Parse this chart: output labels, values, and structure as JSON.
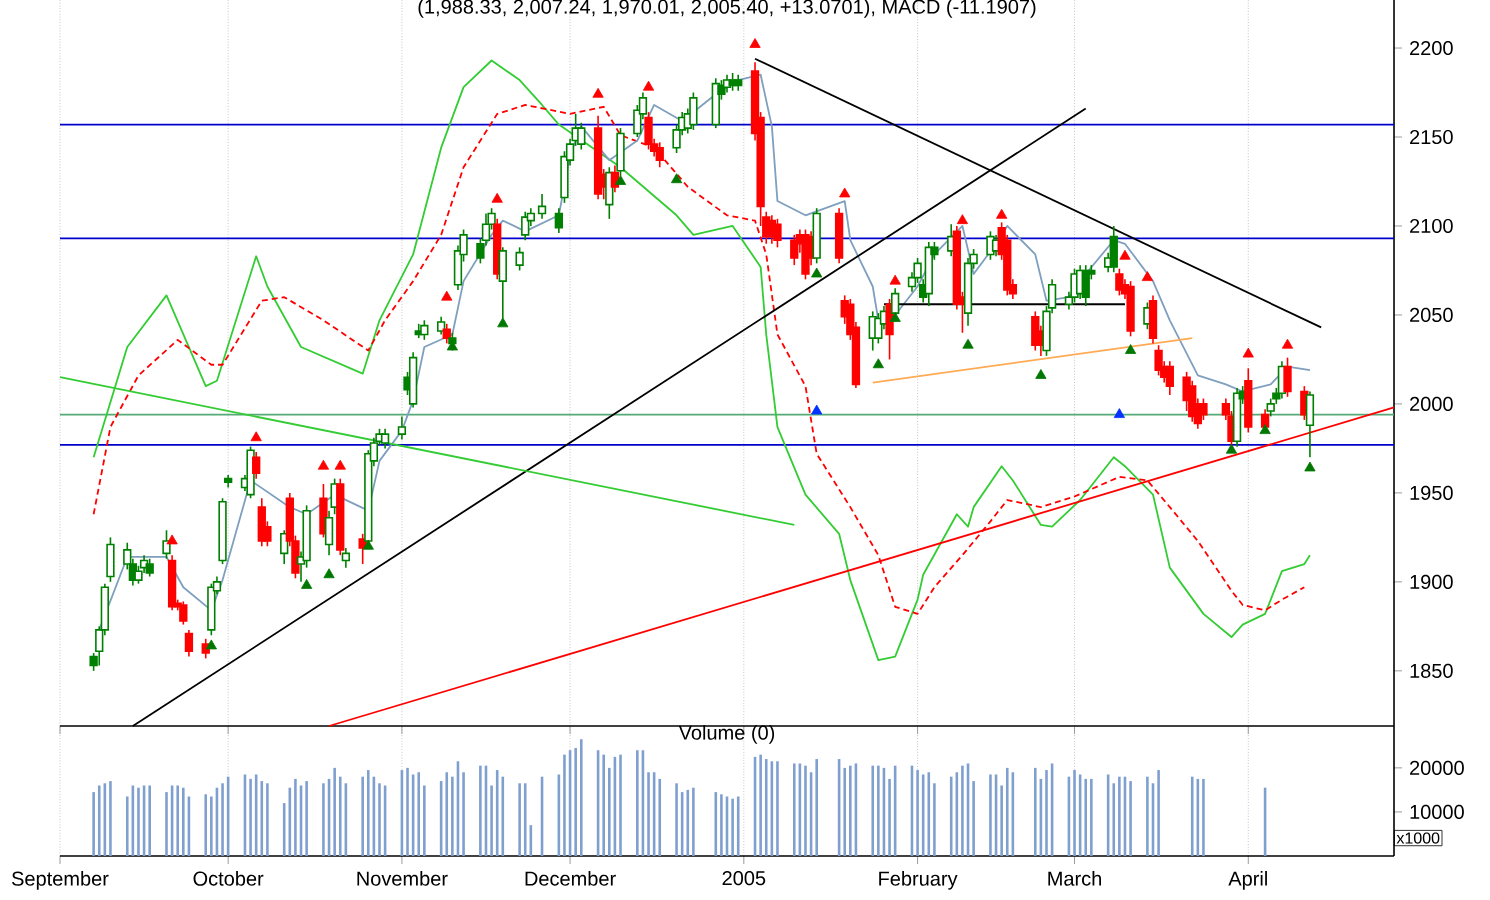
{
  "chart_data": [
    {
      "type": "candlestick",
      "title": "(1,988.33, 2,007.24, 1,970.01, 2,005.40, +13.0701), MACD (-11.1907)",
      "x": [
        "2004-09-07",
        "2004-09-08",
        "2004-09-09",
        "2004-09-10",
        "2004-09-13",
        "2004-09-14",
        "2004-09-15",
        "2004-09-16",
        "2004-09-17",
        "2004-09-20",
        "2004-09-21",
        "2004-09-22",
        "2004-09-23",
        "2004-09-24",
        "2004-09-27",
        "2004-09-28",
        "2004-09-29",
        "2004-09-30",
        "2004-10-01",
        "2004-10-04",
        "2004-10-05",
        "2004-10-06",
        "2004-10-07",
        "2004-10-08",
        "2004-10-11",
        "2004-10-12",
        "2004-10-13",
        "2004-10-14",
        "2004-10-15",
        "2004-10-18",
        "2004-10-19",
        "2004-10-20",
        "2004-10-21",
        "2004-10-22",
        "2004-10-25",
        "2004-10-26",
        "2004-10-27",
        "2004-10-28",
        "2004-10-29",
        "2004-11-01",
        "2004-11-02",
        "2004-11-03",
        "2004-11-04",
        "2004-11-05",
        "2004-11-08",
        "2004-11-09",
        "2004-11-10",
        "2004-11-11",
        "2004-11-12",
        "2004-11-15",
        "2004-11-16",
        "2004-11-17",
        "2004-11-18",
        "2004-11-19",
        "2004-11-22",
        "2004-11-23",
        "2004-11-24",
        "2004-11-26",
        "2004-11-29",
        "2004-11-30",
        "2004-12-01",
        "2004-12-02",
        "2004-12-03",
        "2004-12-06",
        "2004-12-07",
        "2004-12-08",
        "2004-12-09",
        "2004-12-10",
        "2004-12-13",
        "2004-12-14",
        "2004-12-15",
        "2004-12-16",
        "2004-12-17",
        "2004-12-20",
        "2004-12-21",
        "2004-12-22",
        "2004-12-23",
        "2004-12-27",
        "2004-12-28",
        "2004-12-29",
        "2004-12-30",
        "2004-12-31",
        "2005-01-03",
        "2005-01-04",
        "2005-01-05",
        "2005-01-06",
        "2005-01-07",
        "2005-01-10",
        "2005-01-11",
        "2005-01-12",
        "2005-01-13",
        "2005-01-14",
        "2005-01-18",
        "2005-01-19",
        "2005-01-20",
        "2005-01-21",
        "2005-01-24",
        "2005-01-25",
        "2005-01-26",
        "2005-01-27",
        "2005-01-28",
        "2005-01-31",
        "2005-02-01",
        "2005-02-02",
        "2005-02-03",
        "2005-02-04",
        "2005-02-07",
        "2005-02-08",
        "2005-02-09",
        "2005-02-10",
        "2005-02-11",
        "2005-02-14",
        "2005-02-15",
        "2005-02-16",
        "2005-02-17",
        "2005-02-18",
        "2005-02-22",
        "2005-02-23",
        "2005-02-24",
        "2005-02-25",
        "2005-02-28",
        "2005-03-01",
        "2005-03-02",
        "2005-03-03",
        "2005-03-04",
        "2005-03-07",
        "2005-03-08",
        "2005-03-09",
        "2005-03-10",
        "2005-03-11",
        "2005-03-14",
        "2005-03-15",
        "2005-03-16",
        "2005-03-17",
        "2005-03-18",
        "2005-03-21",
        "2005-03-22",
        "2005-03-23",
        "2005-03-24",
        "2005-03-28",
        "2005-03-29",
        "2005-03-30",
        "2005-03-31",
        "2005-04-01",
        "2005-04-04",
        "2005-04-05",
        "2005-04-06",
        "2005-04-07",
        "2005-04-08",
        "2005-04-11",
        "2005-04-12"
      ],
      "ohlc": [
        [
          1858,
          1860,
          1850,
          1853
        ],
        [
          1861,
          1875,
          1853,
          1873
        ],
        [
          1873,
          1899,
          1870,
          1897
        ],
        [
          1903,
          1925,
          1900,
          1921
        ],
        [
          1910,
          1922,
          1907,
          1918
        ],
        [
          1910,
          1913,
          1898,
          1901
        ],
        [
          1901,
          1909,
          1899,
          1906
        ],
        [
          1908,
          1915,
          1905,
          1912
        ],
        [
          1910,
          1913,
          1903,
          1905
        ],
        [
          1916,
          1929,
          1913,
          1923
        ],
        [
          1912,
          1915,
          1884,
          1886
        ],
        [
          1888,
          1890,
          1884,
          1886
        ],
        [
          1887,
          1889,
          1876,
          1878
        ],
        [
          1871,
          1873,
          1858,
          1861
        ],
        [
          1865,
          1868,
          1857,
          1860
        ],
        [
          1873,
          1899,
          1870,
          1897
        ],
        [
          1895,
          1903,
          1893,
          1900
        ],
        [
          1912,
          1947,
          1910,
          1945
        ],
        [
          1958,
          1960,
          1953,
          1956
        ],
        [
          1953,
          1960,
          1951,
          1958
        ],
        [
          1949,
          1976,
          1947,
          1974
        ],
        [
          1970,
          1973,
          1958,
          1961
        ],
        [
          1942,
          1947,
          1920,
          1923
        ],
        [
          1931,
          1934,
          1920,
          1923
        ],
        [
          1916,
          1929,
          1910,
          1927
        ],
        [
          1947,
          1950,
          1920,
          1923
        ],
        [
          1923,
          1926,
          1902,
          1905
        ],
        [
          1910,
          1917,
          1900,
          1914
        ],
        [
          1912,
          1943,
          1908,
          1940
        ],
        [
          1947,
          1955,
          1925,
          1927
        ],
        [
          1921,
          1940,
          1915,
          1936
        ],
        [
          1942,
          1958,
          1938,
          1955
        ],
        [
          1955,
          1958,
          1915,
          1918
        ],
        [
          1912,
          1919,
          1908,
          1916
        ],
        [
          1924,
          1927,
          1910,
          1919
        ],
        [
          1923,
          1974,
          1920,
          1972
        ],
        [
          1968,
          1981,
          1965,
          1978
        ],
        [
          1979,
          1986,
          1977,
          1983
        ],
        [
          1978,
          1986,
          1975,
          1983
        ],
        [
          1983,
          1993,
          1980,
          1987
        ],
        [
          2015,
          2018,
          2005,
          2008
        ],
        [
          2000,
          2029,
          1998,
          2026
        ],
        [
          2041,
          2045,
          2037,
          2039
        ],
        [
          2039,
          2047,
          2036,
          2044
        ],
        [
          2041,
          2049,
          2039,
          2046
        ],
        [
          2042,
          2045,
          2034,
          2037
        ],
        [
          2037,
          2040,
          2030,
          2034
        ],
        [
          2067,
          2089,
          2064,
          2086
        ],
        [
          2084,
          2098,
          2080,
          2095
        ],
        [
          2090,
          2093,
          2079,
          2082
        ],
        [
          2092,
          2107,
          2089,
          2101
        ],
        [
          2101,
          2110,
          2098,
          2107
        ],
        [
          2101,
          2104,
          2070,
          2073
        ],
        [
          2069,
          2088,
          2048,
          2086
        ],
        [
          2078,
          2088,
          2075,
          2085
        ],
        [
          2095,
          2108,
          2092,
          2105
        ],
        [
          2103,
          2110,
          2100,
          2107
        ],
        [
          2107,
          2118,
          2104,
          2111
        ],
        [
          2107,
          2110,
          2096,
          2099
        ],
        [
          2116,
          2142,
          2113,
          2139
        ],
        [
          2137,
          2149,
          2134,
          2146
        ],
        [
          2148,
          2163,
          2145,
          2155
        ],
        [
          2146,
          2158,
          2143,
          2155
        ],
        [
          2155,
          2162,
          2115,
          2118
        ],
        [
          2129,
          2132,
          2115,
          2122
        ],
        [
          2112,
          2133,
          2104,
          2130
        ],
        [
          2130,
          2134,
          2119,
          2122
        ],
        [
          2131,
          2155,
          2128,
          2152
        ],
        [
          2152,
          2168,
          2150,
          2165
        ],
        [
          2163,
          2175,
          2160,
          2172
        ],
        [
          2161,
          2164,
          2143,
          2146
        ],
        [
          2146,
          2149,
          2139,
          2142
        ],
        [
          2144,
          2147,
          2133,
          2137
        ],
        [
          2144,
          2157,
          2141,
          2154
        ],
        [
          2154,
          2164,
          2151,
          2161
        ],
        [
          2155,
          2166,
          2152,
          2163
        ],
        [
          2157,
          2175,
          2154,
          2172
        ],
        [
          2157,
          2183,
          2155,
          2180
        ],
        [
          2179,
          2182,
          2171,
          2174
        ],
        [
          2178,
          2185,
          2175,
          2182
        ],
        [
          2182,
          2186,
          2176,
          2179
        ],
        [
          2182,
          2185,
          2176,
          2179
        ],
        [
          2187,
          2192,
          2148,
          2152
        ],
        [
          2161,
          2164,
          2100,
          2111
        ],
        [
          2105,
          2108,
          2090,
          2094
        ],
        [
          2103,
          2106,
          2090,
          2094
        ],
        [
          2101,
          2104,
          2088,
          2092
        ],
        [
          2092,
          2095,
          2078,
          2082
        ],
        [
          2095,
          2098,
          2085,
          2090
        ],
        [
          2095,
          2098,
          2070,
          2073
        ],
        [
          2094,
          2097,
          2078,
          2082
        ],
        [
          2082,
          2110,
          2079,
          2107
        ],
        [
          2107,
          2110,
          2079,
          2082
        ],
        [
          2058,
          2061,
          2045,
          2049
        ],
        [
          2056,
          2059,
          2036,
          2039
        ],
        [
          2043,
          2046,
          2009,
          2011
        ],
        [
          2037,
          2052,
          2030,
          2049
        ],
        [
          2037,
          2051,
          2034,
          2048
        ],
        [
          2045,
          2055,
          2042,
          2052
        ],
        [
          2056,
          2059,
          2025,
          2039
        ],
        [
          2051,
          2065,
          2048,
          2062
        ],
        [
          2066,
          2074,
          2063,
          2071
        ],
        [
          2071,
          2082,
          2068,
          2079
        ],
        [
          2067,
          2070,
          2057,
          2060
        ],
        [
          2062,
          2091,
          2055,
          2088
        ],
        [
          2088,
          2091,
          2081,
          2084
        ],
        [
          2086,
          2101,
          2083,
          2094
        ],
        [
          2097,
          2100,
          2053,
          2056
        ],
        [
          2060,
          2063,
          2040,
          2056
        ],
        [
          2051,
          2082,
          2044,
          2079
        ],
        [
          2079,
          2087,
          2076,
          2084
        ],
        [
          2084,
          2097,
          2081,
          2094
        ],
        [
          2086,
          2095,
          2083,
          2092
        ],
        [
          2099,
          2102,
          2081,
          2084
        ],
        [
          2092,
          2095,
          2061,
          2064
        ],
        [
          2067,
          2070,
          2059,
          2062
        ],
        [
          2049,
          2052,
          2030,
          2033
        ],
        [
          2041,
          2044,
          2027,
          2033
        ],
        [
          2030,
          2055,
          2027,
          2052
        ],
        [
          2054,
          2070,
          2051,
          2067
        ],
        [
          2056,
          2063,
          2053,
          2060
        ],
        [
          2060,
          2076,
          2057,
          2073
        ],
        [
          2062,
          2078,
          2059,
          2075
        ],
        [
          2075,
          2078,
          2055,
          2060
        ],
        [
          2075,
          2078,
          2070,
          2073
        ],
        [
          2077,
          2085,
          2074,
          2082
        ],
        [
          2094,
          2100,
          2074,
          2077
        ],
        [
          2073,
          2076,
          2061,
          2064
        ],
        [
          2067,
          2070,
          2059,
          2062
        ],
        [
          2066,
          2069,
          2038,
          2041
        ],
        [
          2045,
          2057,
          2042,
          2054
        ],
        [
          2058,
          2061,
          2034,
          2037
        ],
        [
          2030,
          2033,
          2016,
          2019
        ],
        [
          2021,
          2024,
          2012,
          2015
        ],
        [
          2021,
          2024,
          2005,
          2010
        ],
        [
          2015,
          2018,
          1996,
          2002
        ],
        [
          2010,
          2013,
          1990,
          1993
        ],
        [
          2000,
          2003,
          1986,
          1989
        ],
        [
          2000,
          2003,
          1991,
          1994
        ],
        [
          2000,
          2003,
          1991,
          1994
        ],
        [
          1993,
          1996,
          1976,
          1979
        ],
        [
          1979,
          2009,
          1976,
          2006
        ],
        [
          2007,
          2010,
          2000,
          2003
        ],
        [
          2013,
          2020,
          1984,
          1987
        ],
        [
          1994,
          1997,
          1984,
          1987
        ],
        [
          1996,
          2003,
          1993,
          2000
        ],
        [
          2006,
          2009,
          2000,
          2003
        ],
        [
          2006,
          2024,
          2003,
          2021
        ],
        [
          2021,
          2026,
          2004,
          2007
        ],
        [
          2007,
          2010,
          1991,
          1994
        ],
        [
          1988,
          2007,
          1970,
          2005
        ]
      ],
      "colors": [
        "#008000",
        "#008000",
        "#008000",
        "#008000",
        "#008000",
        "#008000",
        "#008000",
        "#008000",
        "#008000",
        "#008000",
        "#ff0000",
        "#ff0000",
        "#ff0000",
        "#ff0000",
        "#ff0000",
        "#008000",
        "#008000",
        "#008000",
        "#008000",
        "#008000",
        "#008000",
        "#ff0000",
        "#ff0000",
        "#ff0000",
        "#008000",
        "#ff0000",
        "#ff0000",
        "#008000",
        "#008000",
        "#ff0000",
        "#008000",
        "#008000",
        "#ff0000",
        "#008000",
        "#ff0000",
        "#008000",
        "#008000",
        "#008000",
        "#008000",
        "#008000",
        "#008000",
        "#008000",
        "#008000",
        "#008000",
        "#008000",
        "#ff0000",
        "#008000",
        "#008000",
        "#008000",
        "#008000",
        "#008000",
        "#008000",
        "#ff0000",
        "#008000",
        "#008000",
        "#008000",
        "#008000",
        "#008000",
        "#008000",
        "#008000",
        "#008000",
        "#008000",
        "#008000",
        "#ff0000",
        "#ff0000",
        "#008000",
        "#ff0000",
        "#008000",
        "#008000",
        "#008000",
        "#ff0000",
        "#ff0000",
        "#ff0000",
        "#008000",
        "#008000",
        "#008000",
        "#008000",
        "#008000",
        "#008000",
        "#008000",
        "#008000",
        "#008000",
        "#ff0000",
        "#ff0000",
        "#ff0000",
        "#ff0000",
        "#ff0000",
        "#ff0000",
        "#ff0000",
        "#ff0000",
        "#ff0000",
        "#008000",
        "#ff0000",
        "#ff0000",
        "#ff0000",
        "#ff0000",
        "#008000",
        "#008000",
        "#008000",
        "#ff0000",
        "#008000",
        "#008000",
        "#008000",
        "#008000",
        "#008000",
        "#008000",
        "#008000",
        "#ff0000",
        "#ff0000",
        "#008000",
        "#008000",
        "#008000",
        "#008000",
        "#ff0000",
        "#ff0000",
        "#ff0000",
        "#ff0000",
        "#ff0000",
        "#008000",
        "#008000",
        "#008000",
        "#008000",
        "#008000",
        "#008000",
        "#008000",
        "#008000",
        "#008000",
        "#ff0000",
        "#ff0000",
        "#ff0000",
        "#008000",
        "#ff0000",
        "#ff0000",
        "#ff0000",
        "#ff0000",
        "#ff0000",
        "#ff0000",
        "#ff0000",
        "#ff0000",
        "#ff0000",
        "#ff0000",
        "#008000",
        "#008000",
        "#ff0000",
        "#ff0000",
        "#008000",
        "#008000",
        "#008000",
        "#ff0000",
        "#ff0000",
        "#008000"
      ],
      "xlim": [
        "2004-09-01",
        "2005-04-27"
      ],
      "xticks": [
        {
          "value": "2004-09-01",
          "label": null
        },
        {
          "value": "2004-10-01",
          "label": null
        },
        {
          "value": "2004-11-01",
          "label": null
        },
        {
          "value": "2004-12-01",
          "label": null
        },
        {
          "value": "2005-01-01",
          "label": null
        },
        {
          "value": "2005-02-01",
          "label": null
        },
        {
          "value": "2005-03-01",
          "label": null
        },
        {
          "value": "2005-04-01",
          "label": null
        }
      ],
      "ylim": [
        1819,
        2227
      ],
      "yticks": [
        1850,
        1900,
        1950,
        2000,
        2050,
        2100,
        2150,
        2200
      ],
      "tick_labels": "y",
      "grid": "x",
      "ref_lines": [
        {
          "axis": "y",
          "value": 2157,
          "color": "#0000cc"
        },
        {
          "axis": "y",
          "value": 2093,
          "color": "#0000cc"
        },
        {
          "axis": "y",
          "value": 1994,
          "color": "#55aa77"
        },
        {
          "axis": "y",
          "value": 1977,
          "color": "#0000cc"
        }
      ],
      "series": [
        {
          "type": "line",
          "color": "#33cc33",
          "x": [
            "2004-09-07",
            "2004-09-13",
            "2004-09-20",
            "2004-09-27",
            "2004-09-29",
            "2004-10-06",
            "2004-10-08",
            "2004-10-14",
            "2004-10-25",
            "2004-10-28",
            "2004-11-03",
            "2004-11-08",
            "2004-11-12",
            "2004-11-17",
            "2004-11-22",
            "2004-11-26",
            "2004-11-29",
            "2004-12-10",
            "2004-12-20",
            "2004-12-23",
            "2004-12-30",
            "2005-01-04",
            "2005-01-05",
            "2005-01-07",
            "2005-01-12",
            "2005-01-18",
            "2005-01-20",
            "2005-01-25",
            "2005-01-28",
            "2005-02-01",
            "2005-02-02",
            "2005-02-08",
            "2005-02-10",
            "2005-02-11",
            "2005-02-16",
            "2005-02-18",
            "2005-02-23",
            "2005-02-25",
            "2005-03-02",
            "2005-03-08",
            "2005-03-10",
            "2005-03-15",
            "2005-03-18",
            "2005-03-24",
            "2005-03-29",
            "2005-03-31",
            "2005-04-04",
            "2005-04-07",
            "2005-04-11",
            "2005-04-12"
          ],
          "values": [
            1970,
            2032,
            2061,
            2010,
            2013,
            2083,
            2066,
            2032,
            2017,
            2047,
            2084,
            2144,
            2178,
            2193,
            2182,
            2168,
            2157,
            2133,
            2106,
            2095,
            2100,
            2077,
            2039,
            1987,
            1949,
            1927,
            1901,
            1856,
            1858,
            1890,
            1904,
            1938,
            1931,
            1942,
            1965,
            1957,
            1932,
            1931,
            1946,
            1970,
            1965,
            1949,
            1908,
            1882,
            1869,
            1876,
            1882,
            1906,
            1910,
            1915
          ]
        },
        {
          "type": "line",
          "color": "#ff0000",
          "line_style": "dashed",
          "x": [
            "2004-09-07",
            "2004-09-10",
            "2004-09-15",
            "2004-09-22",
            "2004-09-28",
            "2004-09-30",
            "2004-10-07",
            "2004-10-11",
            "2004-10-18",
            "2004-10-26",
            "2004-10-29",
            "2004-11-03",
            "2004-11-08",
            "2004-11-12",
            "2004-11-18",
            "2004-11-23",
            "2004-12-01",
            "2004-12-07",
            "2004-12-10",
            "2004-12-16",
            "2004-12-22",
            "2004-12-29",
            "2005-01-03",
            "2005-01-05",
            "2005-01-07",
            "2005-01-12",
            "2005-01-14",
            "2005-01-20",
            "2005-01-25",
            "2005-01-28",
            "2005-02-01",
            "2005-02-04",
            "2005-02-09",
            "2005-02-14",
            "2005-02-17",
            "2005-02-23",
            "2005-03-01",
            "2005-03-09",
            "2005-03-14",
            "2005-03-18",
            "2005-03-23",
            "2005-03-29",
            "2005-03-31",
            "2005-04-04",
            "2005-04-07",
            "2005-04-11"
          ],
          "values": [
            1938,
            1987,
            2016,
            2036,
            2022,
            2022,
            2058,
            2060,
            2047,
            2030,
            2047,
            2069,
            2095,
            2133,
            2163,
            2168,
            2163,
            2167,
            2151,
            2144,
            2122,
            2106,
            2103,
            2084,
            2039,
            2010,
            1972,
            1942,
            1915,
            1886,
            1882,
            1897,
            1915,
            1934,
            1946,
            1942,
            1948,
            1959,
            1957,
            1942,
            1923,
            1895,
            1887,
            1884,
            1890,
            1897
          ]
        },
        {
          "type": "line",
          "color": "#7f9fbf",
          "x": [
            "2004-09-08",
            "2004-09-13",
            "2004-09-20",
            "2004-09-23",
            "2004-09-28",
            "2004-09-30",
            "2004-10-05",
            "2004-10-12",
            "2004-10-15",
            "2004-10-20",
            "2004-10-26",
            "2004-10-28",
            "2004-11-01",
            "2004-11-03",
            "2004-11-05",
            "2004-11-10",
            "2004-11-12",
            "2004-11-17",
            "2004-11-19",
            "2004-11-23",
            "2004-11-29",
            "2004-12-01",
            "2004-12-03",
            "2004-12-08",
            "2004-12-13",
            "2004-12-16",
            "2004-12-21",
            "2004-12-27",
            "2004-12-31",
            "2005-01-04",
            "2005-01-06",
            "2005-01-07",
            "2005-01-12",
            "2005-01-19",
            "2005-01-20",
            "2005-01-24",
            "2005-01-25",
            "2005-01-28",
            "2005-02-01",
            "2005-02-04",
            "2005-02-09",
            "2005-02-11",
            "2005-02-15",
            "2005-02-17",
            "2005-02-22",
            "2005-02-24",
            "2005-02-28",
            "2005-03-03",
            "2005-03-08",
            "2005-03-10",
            "2005-03-15",
            "2005-03-18",
            "2005-03-23",
            "2005-03-28",
            "2005-03-31",
            "2005-04-05",
            "2005-04-08",
            "2005-04-12"
          ],
          "values": [
            1873,
            1914,
            1914,
            1897,
            1884,
            1901,
            1957,
            1942,
            1938,
            1949,
            1940,
            1968,
            1985,
            2002,
            2032,
            2039,
            2069,
            2095,
            2103,
            2097,
            2106,
            2140,
            2156,
            2137,
            2148,
            2168,
            2159,
            2174,
            2182,
            2185,
            2156,
            2114,
            2106,
            2114,
            2092,
            2066,
            2047,
            2050,
            2066,
            2084,
            2100,
            2073,
            2090,
            2100,
            2084,
            2058,
            2060,
            2073,
            2092,
            2090,
            2069,
            2047,
            2016,
            2011,
            2007,
            2011,
            2021,
            2019
          ]
        },
        {
          "type": "line",
          "color": "#000000",
          "x": [
            "2004-09-14",
            "2005-03-03"
          ],
          "values": [
            1819,
            2166
          ]
        },
        {
          "type": "line",
          "color": "#000000",
          "x": [
            "2005-01-03",
            "2005-04-14"
          ],
          "values": [
            2194,
            2043
          ]
        },
        {
          "type": "line",
          "color": "#ff0000",
          "x": [
            "2004-10-19",
            "2005-04-27"
          ],
          "values": [
            1819,
            1998
          ]
        },
        {
          "type": "line",
          "color": "#33cc33",
          "x": [
            "2004-09-01",
            "2005-01-10"
          ],
          "values": [
            2015,
            1932
          ]
        },
        {
          "type": "line",
          "color": "#ffaa55",
          "x": [
            "2005-01-24",
            "2005-03-22"
          ],
          "values": [
            2012,
            2037
          ]
        },
        {
          "type": "line",
          "color": "#000000",
          "x": [
            "2005-01-26",
            "2005-03-10"
          ],
          "values": [
            2056,
            2056
          ]
        },
        {
          "type": "scatter",
          "marker": "triangle",
          "color": "#ff0000",
          "x": [
            "2004-09-21",
            "2004-10-06",
            "2004-10-18",
            "2004-10-21",
            "2004-11-09",
            "2004-11-18",
            "2004-12-06",
            "2004-12-15",
            "2005-01-03",
            "2005-01-19",
            "2005-01-28",
            "2005-02-09",
            "2005-02-16",
            "2005-03-10",
            "2005-03-14",
            "2005-04-01",
            "2005-04-08"
          ],
          "values": [
            1923,
            1981,
            1965,
            1965,
            2060,
            2115,
            2174,
            2178,
            2202,
            2118,
            2069,
            2103,
            2106,
            2083,
            2071,
            2028,
            2033
          ]
        },
        {
          "type": "scatter",
          "marker": "triangle",
          "color": "#007700",
          "x": [
            "2004-09-28",
            "2004-10-15",
            "2004-10-19",
            "2004-10-26",
            "2004-11-10",
            "2004-11-19",
            "2004-12-10",
            "2004-12-20",
            "2005-01-14",
            "2005-01-25",
            "2005-01-28",
            "2005-02-10",
            "2005-02-23",
            "2005-03-11",
            "2005-03-29",
            "2005-04-04",
            "2005-04-12"
          ],
          "values": [
            1864,
            1898,
            1904,
            1920,
            2032,
            2045,
            2125,
            2126,
            2073,
            2022,
            2048,
            2033,
            2016,
            2030,
            1974,
            1985,
            1964
          ]
        },
        {
          "type": "scatter",
          "marker": "triangle",
          "color": "#0033ff",
          "x": [
            "2005-01-14",
            "2005-03-09"
          ],
          "values": [
            1996,
            1994
          ]
        }
      ]
    },
    {
      "type": "bar",
      "title": "Volume (0)",
      "color": "#7f9fcf",
      "x": [
        "2004-09-07",
        "2004-09-08",
        "2004-09-09",
        "2004-09-10",
        "2004-09-13",
        "2004-09-14",
        "2004-09-15",
        "2004-09-16",
        "2004-09-17",
        "2004-09-20",
        "2004-09-21",
        "2004-09-22",
        "2004-09-23",
        "2004-09-24",
        "2004-09-27",
        "2004-09-28",
        "2004-09-29",
        "2004-09-30",
        "2004-10-01",
        "2004-10-04",
        "2004-10-05",
        "2004-10-06",
        "2004-10-07",
        "2004-10-08",
        "2004-10-11",
        "2004-10-12",
        "2004-10-13",
        "2004-10-14",
        "2004-10-15",
        "2004-10-18",
        "2004-10-19",
        "2004-10-20",
        "2004-10-21",
        "2004-10-22",
        "2004-10-25",
        "2004-10-26",
        "2004-10-27",
        "2004-10-28",
        "2004-10-29",
        "2004-11-01",
        "2004-11-02",
        "2004-11-03",
        "2004-11-04",
        "2004-11-05",
        "2004-11-08",
        "2004-11-09",
        "2004-11-10",
        "2004-11-11",
        "2004-11-12",
        "2004-11-15",
        "2004-11-16",
        "2004-11-17",
        "2004-11-18",
        "2004-11-19",
        "2004-11-22",
        "2004-11-23",
        "2004-11-24",
        "2004-11-26",
        "2004-11-29",
        "2004-11-30",
        "2004-12-01",
        "2004-12-02",
        "2004-12-03",
        "2004-12-06",
        "2004-12-07",
        "2004-12-08",
        "2004-12-09",
        "2004-12-10",
        "2004-12-13",
        "2004-12-14",
        "2004-12-15",
        "2004-12-16",
        "2004-12-17",
        "2004-12-20",
        "2004-12-21",
        "2004-12-22",
        "2004-12-23",
        "2004-12-27",
        "2004-12-28",
        "2004-12-29",
        "2004-12-30",
        "2004-12-31",
        "2005-01-03",
        "2005-01-04",
        "2005-01-05",
        "2005-01-06",
        "2005-01-07",
        "2005-01-10",
        "2005-01-11",
        "2005-01-12",
        "2005-01-13",
        "2005-01-14",
        "2005-01-18",
        "2005-01-19",
        "2005-01-20",
        "2005-01-21",
        "2005-01-24",
        "2005-01-25",
        "2005-01-26",
        "2005-01-27",
        "2005-01-28",
        "2005-01-31",
        "2005-02-01",
        "2005-02-02",
        "2005-02-03",
        "2005-02-04",
        "2005-02-07",
        "2005-02-08",
        "2005-02-09",
        "2005-02-10",
        "2005-02-11",
        "2005-02-14",
        "2005-02-15",
        "2005-02-16",
        "2005-02-17",
        "2005-02-18",
        "2005-02-22",
        "2005-02-23",
        "2005-02-24",
        "2005-02-25",
        "2005-02-28",
        "2005-03-01",
        "2005-03-02",
        "2005-03-03",
        "2005-03-04",
        "2005-03-07",
        "2005-03-08",
        "2005-03-09",
        "2005-03-10",
        "2005-03-11",
        "2005-03-14",
        "2005-03-15",
        "2005-03-16",
        "2005-03-17",
        "2005-03-18",
        "2005-03-21",
        "2005-03-22",
        "2005-03-23",
        "2005-03-24",
        "2005-03-28",
        "2005-03-29",
        "2005-03-30",
        "2005-03-31",
        "2005-04-01",
        "2005-04-04"
      ],
      "values": [
        14500,
        16000,
        16500,
        17000,
        13500,
        16000,
        15500,
        16000,
        16000,
        14500,
        16000,
        16000,
        15500,
        13500,
        14000,
        13500,
        15500,
        16500,
        18000,
        18500,
        17500,
        18500,
        17000,
        16500,
        12000,
        15500,
        17500,
        16000,
        17000,
        16500,
        17500,
        20000,
        18000,
        16500,
        18000,
        19500,
        18000,
        16500,
        16000,
        19500,
        20000,
        18500,
        19000,
        16000,
        17000,
        19000,
        18000,
        21500,
        19000,
        20500,
        20500,
        16000,
        19500,
        18000,
        16500,
        16500,
        7000,
        18000,
        18500,
        23000,
        24000,
        24500,
        26500,
        24000,
        23000,
        20000,
        22500,
        23000,
        24000,
        24000,
        19000,
        19000,
        17500,
        16500,
        14500,
        15000,
        15500,
        14500,
        14000,
        13500,
        13000,
        13500,
        22500,
        23000,
        22000,
        21500,
        21500,
        21000,
        21000,
        20500,
        19000,
        22000,
        22000,
        20000,
        20500,
        21000,
        20500,
        20500,
        20000,
        17500,
        20500,
        20500,
        19500,
        18500,
        19000,
        16500,
        18000,
        19000,
        20500,
        21000,
        17000,
        18500,
        18500,
        16000,
        20000,
        19000,
        20000,
        17500,
        19500,
        21000,
        18000,
        19500,
        18500,
        17500,
        17500,
        18500,
        16500,
        18000,
        18000,
        17000,
        18000,
        16500,
        19500,
        null,
        null,
        null,
        18000,
        17500,
        17500,
        null,
        null,
        null,
        null,
        null,
        15500
      ],
      "xlim": [
        "2004-09-01",
        "2005-04-27"
      ],
      "xticks": [
        {
          "value": "2004-09-01",
          "label": "September"
        },
        {
          "value": "2004-10-01",
          "label": "October"
        },
        {
          "value": "2004-11-01",
          "label": "November"
        },
        {
          "value": "2004-12-01",
          "label": "December"
        },
        {
          "value": "2005-01-01",
          "label": "2005"
        },
        {
          "value": "2005-02-01",
          "label": "February"
        },
        {
          "value": "2005-03-01",
          "label": "March"
        },
        {
          "value": "2005-04-01",
          "label": "April"
        }
      ],
      "ylim": [
        0,
        29500
      ],
      "yticks": [
        10000,
        20000
      ],
      "grid": "x",
      "annotations": [
        "x1000"
      ]
    }
  ]
}
